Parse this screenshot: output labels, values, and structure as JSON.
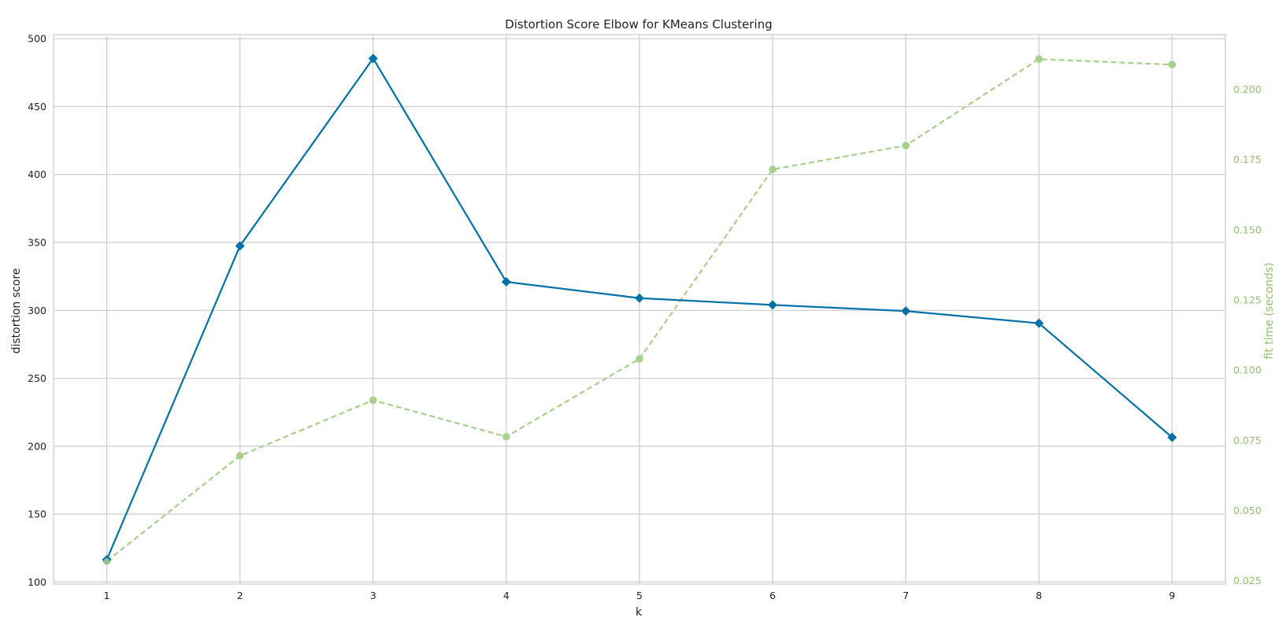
{
  "chart_data": {
    "type": "line",
    "title": "Distortion Score Elbow for KMeans Clustering",
    "xlabel": "k",
    "ylabel": "distortion score",
    "y2label": "fit time (seconds)",
    "x": [
      1,
      2,
      3,
      4,
      5,
      6,
      7,
      8,
      9
    ],
    "xlim": [
      0.6,
      9.4
    ],
    "xticks": [
      "1",
      "2",
      "3",
      "4",
      "5",
      "6",
      "7",
      "8",
      "9"
    ],
    "ylim": [
      98.5,
      503
    ],
    "yticks": [
      "100",
      "150",
      "200",
      "250",
      "300",
      "350",
      "400",
      "450",
      "500"
    ],
    "y2lim": [
      0.0238,
      0.2195
    ],
    "y2ticks": [
      "0.025",
      "0.050",
      "0.075",
      "0.100",
      "0.125",
      "0.150",
      "0.175",
      "0.200"
    ],
    "grid": true,
    "colors": {
      "distortion": "#0072a8",
      "fit_time": "#a6d08c",
      "fit_time_axis": "#8fc26a",
      "grid": "#cccccc",
      "frame": "#cccccc",
      "text": "#222222"
    },
    "series": [
      {
        "axis": "left",
        "values": [
          116.5,
          347.5,
          485.5,
          321,
          309,
          304,
          299.5,
          290.5,
          206.5
        ]
      },
      {
        "axis": "right",
        "values": [
          0.032,
          0.0695,
          0.0893,
          0.0763,
          0.104,
          0.1715,
          0.18,
          0.2108,
          0.2088
        ]
      }
    ]
  }
}
